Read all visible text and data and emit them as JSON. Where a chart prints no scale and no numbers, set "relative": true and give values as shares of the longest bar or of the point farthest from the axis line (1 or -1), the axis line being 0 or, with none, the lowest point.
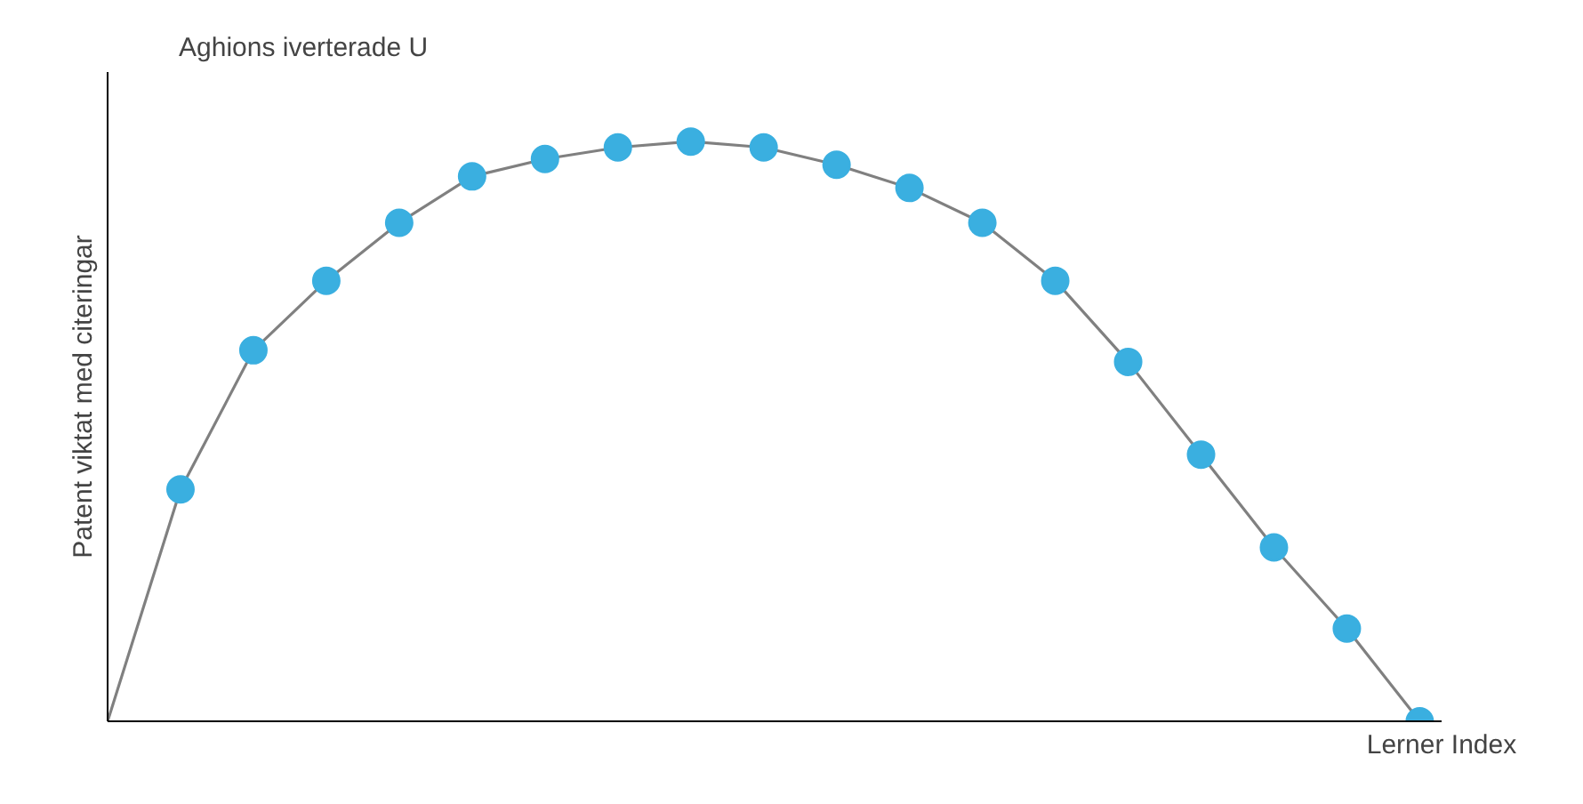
{
  "chart_data": {
    "type": "line",
    "title": "Aghions iverterade U",
    "xlabel": "Lerner Index",
    "ylabel": "Patent viktat med citeringar",
    "relative": true,
    "marker": "circle",
    "categories": [
      null,
      null,
      null,
      null,
      null,
      null,
      null,
      null,
      null,
      null,
      null,
      null,
      null,
      null,
      null,
      null,
      null,
      null,
      null
    ],
    "series": [
      {
        "color": "#808080",
        "values": [
          0,
          0.4,
          0.64,
          0.76,
          0.86,
          0.94,
          0.97,
          0.99,
          1.0,
          0.99,
          0.96,
          0.92,
          0.86,
          0.76,
          0.62,
          0.46,
          0.3,
          0.16,
          0
        ],
        "colors": [
          null,
          "#3aafe0",
          "#3aafe0",
          "#3aafe0",
          "#3aafe0",
          "#3aafe0",
          "#3aafe0",
          "#3aafe0",
          "#3aafe0",
          "#3aafe0",
          "#3aafe0",
          "#3aafe0",
          "#3aafe0",
          "#3aafe0",
          "#3aafe0",
          "#3aafe0",
          "#3aafe0",
          "#3aafe0",
          "#3aafe0"
        ]
      }
    ]
  }
}
